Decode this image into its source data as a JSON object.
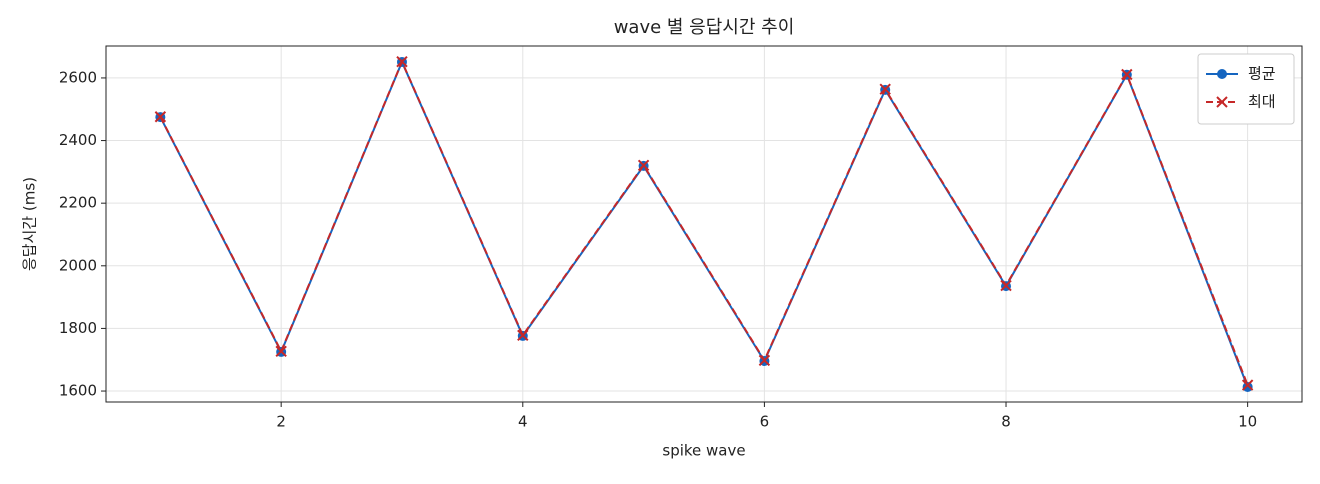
{
  "chart_data": {
    "type": "line",
    "title": "wave 별 응답시간 추이",
    "xlabel": "spike wave",
    "ylabel": "응답시간 (ms)",
    "x": [
      1,
      2,
      3,
      4,
      5,
      6,
      7,
      8,
      9,
      10
    ],
    "series": [
      {
        "name": "평균",
        "color": "#1565c0",
        "marker": "o",
        "linestyle": "solid",
        "values": [
          2475,
          1725,
          2651,
          1776,
          2319,
          1696,
          2562,
          1935,
          2610,
          1613
        ]
      },
      {
        "name": "최대",
        "color": "#c62828",
        "marker": "x",
        "linestyle": "dashed",
        "values": [
          2476,
          1727,
          2652,
          1778,
          2321,
          1698,
          2564,
          1937,
          2611,
          1619
        ]
      }
    ],
    "xlim": [
      0.55,
      10.45
    ],
    "xticks": [
      2,
      4,
      6,
      8,
      10
    ],
    "ylim": [
      1565,
      2702
    ],
    "yticks": [
      1600,
      1800,
      2000,
      2200,
      2400,
      2600
    ],
    "grid": true,
    "legend": "upper right"
  }
}
